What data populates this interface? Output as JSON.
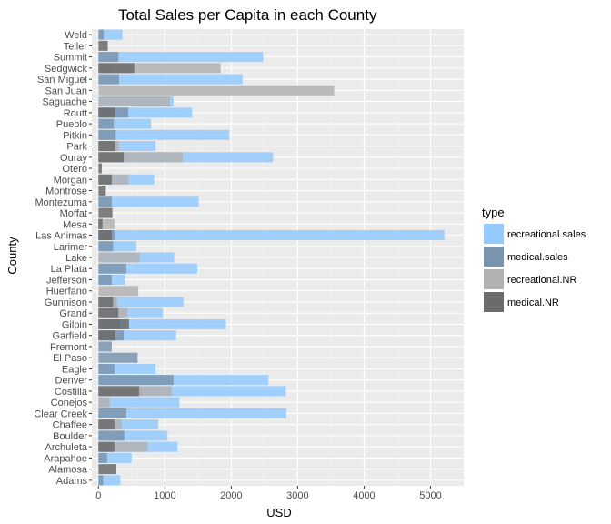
{
  "chart_data": {
    "type": "bar",
    "orientation": "horizontal",
    "title": "Total Sales per Capita in each County",
    "xlabel": "USD",
    "ylabel": "County",
    "xlim": [
      -100,
      5500
    ],
    "xticks": [
      0,
      1000,
      2000,
      3000,
      4000,
      5000
    ],
    "grid": true,
    "legend": {
      "title": "type",
      "position": "right"
    },
    "categories": [
      "Weld",
      "Teller",
      "Summit",
      "Sedgwick",
      "San Miguel",
      "San Juan",
      "Saguache",
      "Routt",
      "Pueblo",
      "Pitkin",
      "Park",
      "Ouray",
      "Otero",
      "Morgan",
      "Montrose",
      "Montezuma",
      "Moffat",
      "Mesa",
      "Las Animas",
      "Larimer",
      "Lake",
      "La Plata",
      "Jefferson",
      "Huerfano",
      "Gunnison",
      "Grand",
      "Gilpin",
      "Garfield",
      "Fremont",
      "El Paso",
      "Eagle",
      "Denver",
      "Costilla",
      "Conejos",
      "Clear Creek",
      "Chaffee",
      "Boulder",
      "Archuleta",
      "Arapahoe",
      "Alamosa",
      "Adams"
    ],
    "series": [
      {
        "name": "recreational.sales",
        "color": "#94caff",
        "values": [
          360,
          0,
          2480,
          0,
          2170,
          0,
          1130,
          1410,
          790,
          1970,
          860,
          2630,
          0,
          840,
          0,
          1510,
          0,
          0,
          5210,
          570,
          1140,
          1490,
          400,
          0,
          1280,
          970,
          1920,
          1170,
          0,
          0,
          860,
          2560,
          2820,
          1220,
          2830,
          900,
          1040,
          1190,
          500,
          0,
          330
        ]
      },
      {
        "name": "medical.sales",
        "color": "#7a94ad",
        "values": [
          80,
          0,
          300,
          180,
          310,
          0,
          0,
          450,
          230,
          260,
          0,
          0,
          0,
          0,
          0,
          200,
          0,
          60,
          240,
          220,
          0,
          420,
          200,
          0,
          0,
          0,
          330,
          380,
          200,
          590,
          240,
          1130,
          640,
          0,
          420,
          0,
          390,
          200,
          130,
          0,
          70
        ]
      },
      {
        "name": "recreational.NR",
        "color": "#b2b2b2",
        "values": [
          0,
          0,
          0,
          1840,
          0,
          3550,
          1080,
          0,
          0,
          0,
          310,
          1270,
          0,
          450,
          0,
          0,
          0,
          240,
          0,
          0,
          620,
          0,
          0,
          600,
          280,
          440,
          0,
          0,
          0,
          0,
          0,
          0,
          1100,
          170,
          0,
          350,
          0,
          740,
          0,
          0,
          0
        ]
      },
      {
        "name": "medical.NR",
        "color": "#6b6b6b",
        "values": [
          0,
          140,
          0,
          540,
          0,
          0,
          0,
          250,
          0,
          0,
          250,
          380,
          50,
          200,
          110,
          0,
          210,
          60,
          200,
          0,
          0,
          0,
          0,
          0,
          220,
          300,
          460,
          250,
          0,
          0,
          0,
          0,
          610,
          0,
          0,
          240,
          0,
          240,
          0,
          270,
          0
        ]
      }
    ]
  }
}
